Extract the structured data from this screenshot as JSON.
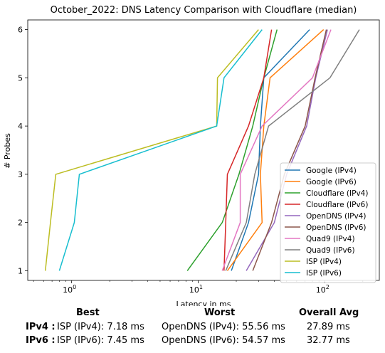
{
  "chart_data": {
    "type": "line",
    "title": "October_2022: DNS Latency Comparison with Cloudflare (median)",
    "xlabel": "Latency in ms",
    "ylabel": "# Probes",
    "xscale": "log",
    "xlim": [
      0.45,
      270
    ],
    "ylim": [
      0.8,
      6.2
    ],
    "x_ticks": [
      {
        "value": 1,
        "label": "10^0"
      },
      {
        "value": 10,
        "label": "10^1"
      },
      {
        "value": 100,
        "label": "10^2"
      }
    ],
    "y_ticks": [
      1,
      2,
      3,
      4,
      5,
      6
    ],
    "legend_position": "lower-right",
    "series": [
      {
        "name": "Google (IPv4)",
        "color": "#1f77b4",
        "points": [
          [
            18.3,
            1
          ],
          [
            25,
            2
          ],
          [
            30,
            3
          ],
          [
            31,
            4
          ],
          [
            33,
            5
          ],
          [
            76,
            6
          ]
        ]
      },
      {
        "name": "Google (IPv6)",
        "color": "#ff7f0e",
        "points": [
          [
            17,
            1
          ],
          [
            32,
            2
          ],
          [
            31,
            3
          ],
          [
            33,
            4
          ],
          [
            37,
            5
          ],
          [
            98,
            6
          ]
        ]
      },
      {
        "name": "Cloudflare (IPv4)",
        "color": "#2ca02c",
        "points": [
          [
            8.2,
            1
          ],
          [
            15.5,
            2
          ],
          [
            21,
            3
          ],
          [
            27,
            4
          ],
          [
            33,
            5
          ],
          [
            42,
            6
          ]
        ]
      },
      {
        "name": "Cloudflare (IPv6)",
        "color": "#d62728",
        "points": [
          [
            16,
            1
          ],
          [
            16.5,
            2
          ],
          [
            17,
            3
          ],
          [
            25,
            4
          ],
          [
            33,
            5
          ],
          [
            38,
            6
          ]
        ]
      },
      {
        "name": "OpenDNS (IPv4)",
        "color": "#9467bd",
        "points": [
          [
            24,
            1
          ],
          [
            40,
            2
          ],
          [
            50,
            3
          ],
          [
            72,
            4
          ],
          [
            85,
            5
          ],
          [
            105,
            6
          ]
        ]
      },
      {
        "name": "OpenDNS (IPv6)",
        "color": "#8c564b",
        "points": [
          [
            27,
            1
          ],
          [
            38,
            2
          ],
          [
            48,
            3
          ],
          [
            70,
            4
          ],
          [
            84,
            5
          ],
          [
            103,
            6
          ]
        ]
      },
      {
        "name": "Quad9 (IPv4)",
        "color": "#e377c2",
        "points": [
          [
            15.5,
            1
          ],
          [
            21.5,
            2
          ],
          [
            21.5,
            3
          ],
          [
            32,
            4
          ],
          [
            80,
            5
          ],
          [
            112,
            6
          ]
        ]
      },
      {
        "name": "Quad9 (IPv6)",
        "color": "#7f7f7f",
        "points": [
          [
            16.5,
            1
          ],
          [
            24,
            2
          ],
          [
            28,
            3
          ],
          [
            36,
            4
          ],
          [
            110,
            5
          ],
          [
            188,
            6
          ]
        ]
      },
      {
        "name": "ISP (IPv4)",
        "color": "#bcbd22",
        "points": [
          [
            0.62,
            1
          ],
          [
            0.68,
            2
          ],
          [
            0.75,
            3
          ],
          [
            14,
            4
          ],
          [
            14.2,
            5
          ],
          [
            30,
            6
          ]
        ]
      },
      {
        "name": "ISP (IPv6)",
        "color": "#17becf",
        "points": [
          [
            0.8,
            1
          ],
          [
            1.05,
            2
          ],
          [
            1.15,
            3
          ],
          [
            14,
            4
          ],
          [
            16,
            5
          ],
          [
            32,
            6
          ]
        ]
      }
    ]
  },
  "summary": {
    "headers": {
      "best": "Best",
      "worst": "Worst",
      "avg": "Overall Avg"
    },
    "rows": [
      {
        "label": "IPv4 :",
        "best": "ISP (IPv4): 7.18 ms",
        "worst": "OpenDNS (IPv4): 55.56 ms",
        "avg": "27.89 ms"
      },
      {
        "label": "IPv6 :",
        "best": "ISP (IPv6): 7.45 ms",
        "worst": "OpenDNS (IPv6): 54.57 ms",
        "avg": "32.77 ms"
      }
    ]
  }
}
